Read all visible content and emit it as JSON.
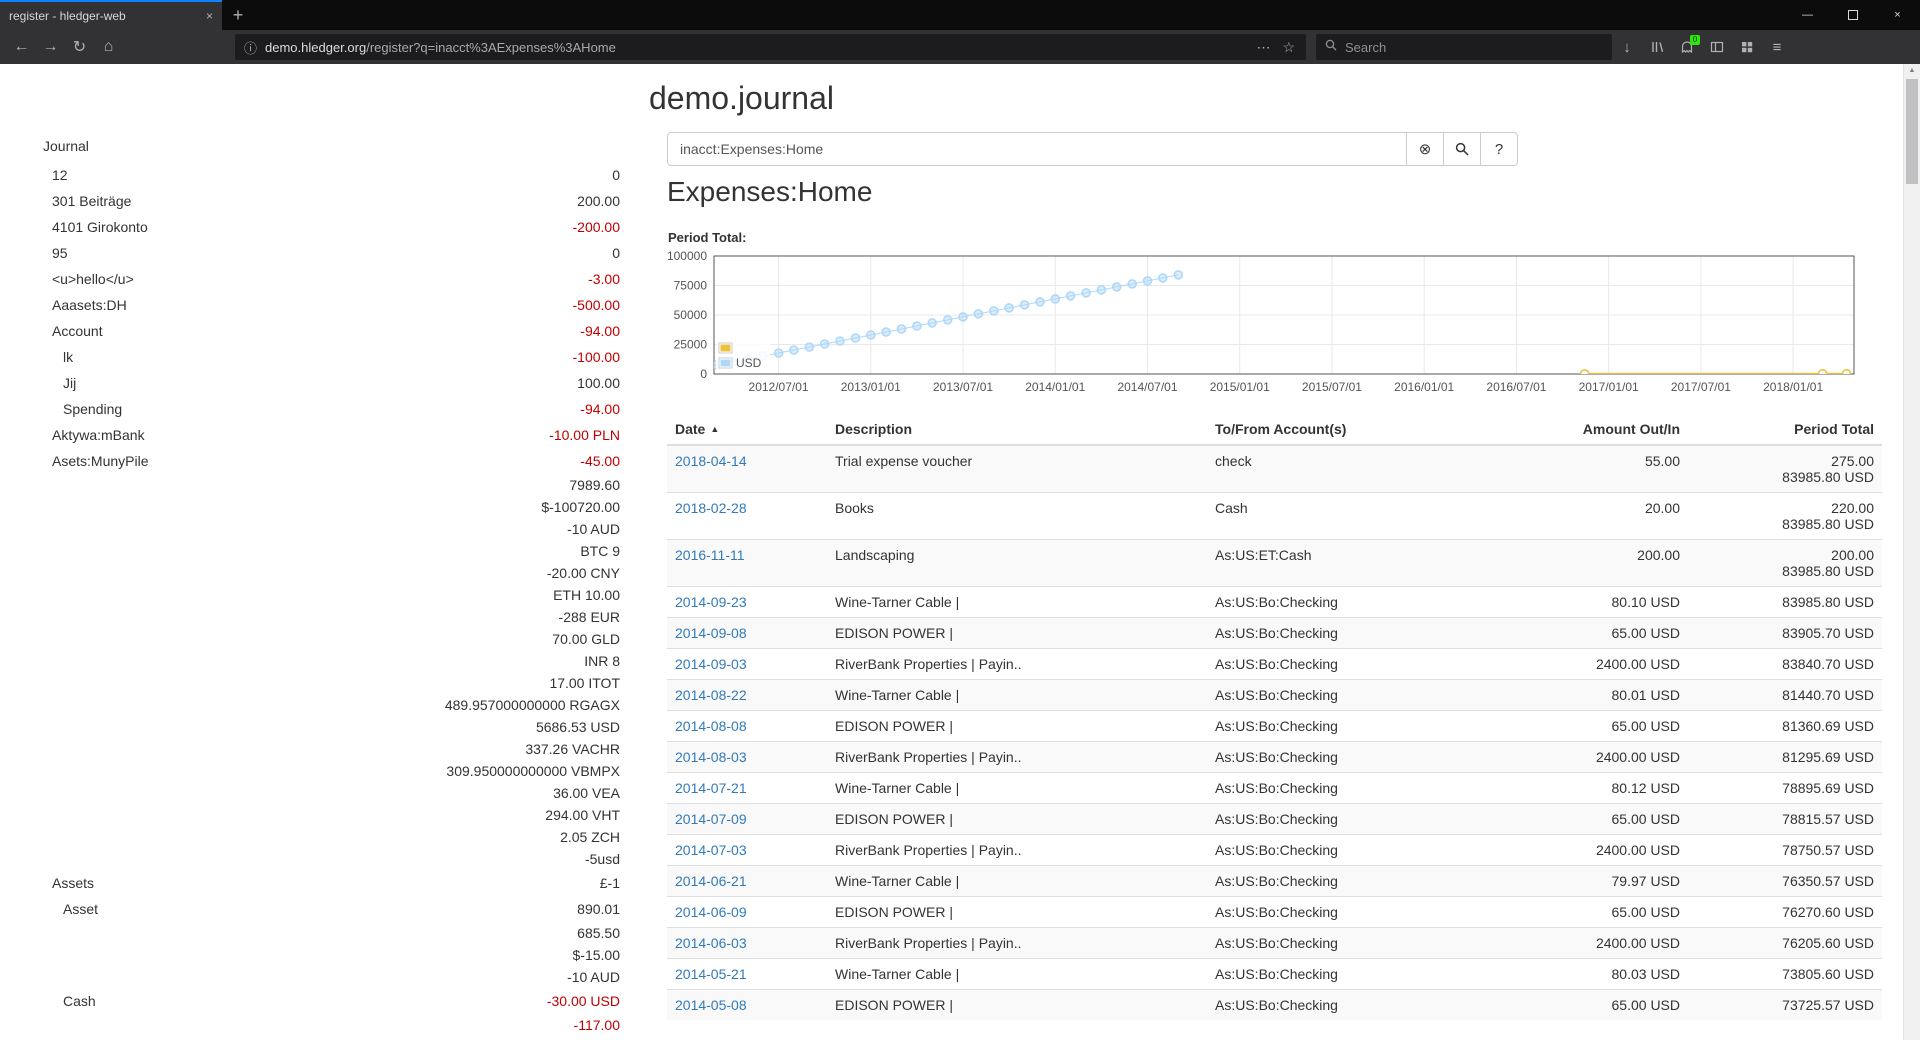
{
  "browser": {
    "tab_title": "register - hledger-web",
    "url_host": "demo.hledger.org",
    "url_path": "/register?q=inacct%3AExpenses%3AHome",
    "search_placeholder": "Search",
    "badge_count": "0"
  },
  "icons": {
    "back": "←",
    "forward": "→",
    "reload": "↻",
    "home": "⌂",
    "info": "ⓘ",
    "ellipsis": "⋯",
    "star": "☆",
    "menu": "≡",
    "new_tab": "+",
    "tab_close": "×",
    "win_min": "—",
    "win_close": "×",
    "download": "↓",
    "clear": "⊗",
    "help": "?",
    "caret_up": "▲",
    "scroll_up": "▲"
  },
  "page": {
    "title": "demo.journal",
    "heading": "Expenses:Home",
    "period_total_label": "Period Total:",
    "search_query": "inacct:Expenses:Home"
  },
  "sidebar": {
    "journal_label": "Journal",
    "rows": [
      {
        "name": "12",
        "indent": 1,
        "amount": "0",
        "neg": false
      },
      {
        "name": "301 Beiträge",
        "indent": 1,
        "amount": "200.00",
        "neg": false
      },
      {
        "name": "4101 Girokonto",
        "indent": 1,
        "amount": "-200.00",
        "neg": true
      },
      {
        "name": "95",
        "indent": 1,
        "amount": "0",
        "neg": false
      },
      {
        "name": "<u>hello</u>",
        "indent": 1,
        "amount": "-3.00",
        "neg": true
      },
      {
        "name": "Aaasets:DH",
        "indent": 1,
        "amount": "-500.00",
        "neg": true
      },
      {
        "name": "Account",
        "indent": 1,
        "amount": "-94.00",
        "neg": true
      },
      {
        "name": "lk",
        "indent": 2,
        "amount": "-100.00",
        "neg": true
      },
      {
        "name": "Jij",
        "indent": 2,
        "amount": "100.00",
        "neg": false
      },
      {
        "name": "Spending",
        "indent": 2,
        "amount": "-94.00",
        "neg": true
      },
      {
        "name": "Aktywa:mBank",
        "indent": 1,
        "amount": "-10.00 PLN",
        "neg": true
      },
      {
        "name": "Asets:MunyPile",
        "indent": 1,
        "amount": "-45.00",
        "neg": true
      },
      {
        "name": "",
        "amount": "7989.60",
        "neg": false
      },
      {
        "name": "",
        "amount": "$-100720.00",
        "neg": false
      },
      {
        "name": "",
        "amount": "-10 AUD",
        "neg": false
      },
      {
        "name": "",
        "amount": "BTC 9",
        "neg": false
      },
      {
        "name": "",
        "amount": "-20.00 CNY",
        "neg": false
      },
      {
        "name": "",
        "amount": "ETH 10.00",
        "neg": false
      },
      {
        "name": "",
        "amount": "-288 EUR",
        "neg": false
      },
      {
        "name": "",
        "amount": "70.00 GLD",
        "neg": false
      },
      {
        "name": "",
        "amount": "INR 8",
        "neg": false
      },
      {
        "name": "",
        "amount": "17.00 ITOT",
        "neg": false
      },
      {
        "name": "",
        "amount": "489.957000000000 RGAGX",
        "neg": false
      },
      {
        "name": "",
        "amount": "5686.53 USD",
        "neg": false
      },
      {
        "name": "",
        "amount": "337.26 VACHR",
        "neg": false
      },
      {
        "name": "",
        "amount": "309.950000000000 VBMPX",
        "neg": false
      },
      {
        "name": "",
        "amount": "36.00 VEA",
        "neg": false
      },
      {
        "name": "",
        "amount": "294.00 VHT",
        "neg": false
      },
      {
        "name": "",
        "amount": "2.05 ZCH",
        "neg": false
      },
      {
        "name": "",
        "amount": "-5usd",
        "neg": false
      },
      {
        "name": "Assets",
        "indent": 1,
        "amount": "£-1",
        "neg": false
      },
      {
        "name": "Asset",
        "indent": 2,
        "amount": "890.01",
        "neg": false
      },
      {
        "name": "",
        "amount": "685.50",
        "neg": false
      },
      {
        "name": "",
        "amount": "$-15.00",
        "neg": false
      },
      {
        "name": "",
        "amount": "-10 AUD",
        "neg": false
      },
      {
        "name": "Cash",
        "indent": 2,
        "amount": "-30.00 USD",
        "neg": true
      },
      {
        "name": "",
        "amount": "-117.00",
        "neg": true
      }
    ]
  },
  "register": {
    "columns": [
      "Date",
      "Description",
      "To/From Account(s)",
      "Amount Out/In",
      "Period Total"
    ],
    "rows": [
      {
        "date": "2018-04-14",
        "desc": "Trial expense voucher",
        "acct": "check",
        "amount": "55.00",
        "totals": [
          "275.00",
          "83985.80 USD"
        ]
      },
      {
        "date": "2018-02-28",
        "desc": "Books",
        "acct": "Cash",
        "amount": "20.00",
        "totals": [
          "220.00",
          "83985.80 USD"
        ]
      },
      {
        "date": "2016-11-11",
        "desc": "Landscaping",
        "acct": "As:US:ET:Cash",
        "amount": "200.00",
        "totals": [
          "200.00",
          "83985.80 USD"
        ]
      },
      {
        "date": "2014-09-23",
        "desc": "Wine-Tarner Cable |",
        "acct": "As:US:Bo:Checking",
        "amount": "80.10 USD",
        "totals": [
          "83985.80 USD"
        ]
      },
      {
        "date": "2014-09-08",
        "desc": "EDISON POWER |",
        "acct": "As:US:Bo:Checking",
        "amount": "65.00 USD",
        "totals": [
          "83905.70 USD"
        ]
      },
      {
        "date": "2014-09-03",
        "desc": "RiverBank Properties | Payin..",
        "acct": "As:US:Bo:Checking",
        "amount": "2400.00 USD",
        "totals": [
          "83840.70 USD"
        ]
      },
      {
        "date": "2014-08-22",
        "desc": "Wine-Tarner Cable |",
        "acct": "As:US:Bo:Checking",
        "amount": "80.01 USD",
        "totals": [
          "81440.70 USD"
        ]
      },
      {
        "date": "2014-08-08",
        "desc": "EDISON POWER |",
        "acct": "As:US:Bo:Checking",
        "amount": "65.00 USD",
        "totals": [
          "81360.69 USD"
        ]
      },
      {
        "date": "2014-08-03",
        "desc": "RiverBank Properties | Payin..",
        "acct": "As:US:Bo:Checking",
        "amount": "2400.00 USD",
        "totals": [
          "81295.69 USD"
        ]
      },
      {
        "date": "2014-07-21",
        "desc": "Wine-Tarner Cable |",
        "acct": "As:US:Bo:Checking",
        "amount": "80.12 USD",
        "totals": [
          "78895.69 USD"
        ]
      },
      {
        "date": "2014-07-09",
        "desc": "EDISON POWER |",
        "acct": "As:US:Bo:Checking",
        "amount": "65.00 USD",
        "totals": [
          "78815.57 USD"
        ]
      },
      {
        "date": "2014-07-03",
        "desc": "RiverBank Properties | Payin..",
        "acct": "As:US:Bo:Checking",
        "amount": "2400.00 USD",
        "totals": [
          "78750.57 USD"
        ]
      },
      {
        "date": "2014-06-21",
        "desc": "Wine-Tarner Cable |",
        "acct": "As:US:Bo:Checking",
        "amount": "79.97 USD",
        "totals": [
          "76350.57 USD"
        ]
      },
      {
        "date": "2014-06-09",
        "desc": "EDISON POWER |",
        "acct": "As:US:Bo:Checking",
        "amount": "65.00 USD",
        "totals": [
          "76270.60 USD"
        ]
      },
      {
        "date": "2014-06-03",
        "desc": "RiverBank Properties | Payin..",
        "acct": "As:US:Bo:Checking",
        "amount": "2400.00 USD",
        "totals": [
          "76205.60 USD"
        ]
      },
      {
        "date": "2014-05-21",
        "desc": "Wine-Tarner Cable |",
        "acct": "As:US:Bo:Checking",
        "amount": "80.03 USD",
        "totals": [
          "73805.60 USD"
        ]
      },
      {
        "date": "2014-05-08",
        "desc": "EDISON POWER |",
        "acct": "As:US:Bo:Checking",
        "amount": "65.00 USD",
        "totals": [
          "73725.57 USD"
        ]
      }
    ]
  },
  "chart_data": {
    "type": "line",
    "title": "Period Total:",
    "x_range": [
      2012.15,
      2018.33
    ],
    "y_range": [
      0,
      100000
    ],
    "x_tick_values": [
      2012.5,
      2013.0,
      2013.5,
      2014.0,
      2014.5,
      2015.0,
      2015.5,
      2016.0,
      2016.5,
      2017.0,
      2017.5,
      2018.0
    ],
    "x_ticks": [
      "2012/07/01",
      "2013/01/01",
      "2013/07/01",
      "2014/01/01",
      "2014/07/01",
      "2015/01/01",
      "2015/07/01",
      "2016/01/01",
      "2016/07/01",
      "2017/01/01",
      "2017/07/01",
      "2018/01/01"
    ],
    "y_ticks": [
      0,
      25000,
      50000,
      75000,
      100000
    ],
    "grid": true,
    "legend_position": "bottom-left",
    "series": [
      {
        "name": "",
        "color": "#edc240",
        "fill": "#ffffff",
        "line_width": 2,
        "x": [
          2016.87,
          2018.16,
          2018.29
        ],
        "y": [
          200,
          220,
          275
        ]
      },
      {
        "name": "USD",
        "color": "#afd8f8",
        "fill": "rgba(175,216,248,0.45)",
        "line_width": 1,
        "x": [
          2012.0,
          2012.083,
          2012.167,
          2012.25,
          2012.333,
          2012.417,
          2012.5,
          2012.583,
          2012.667,
          2012.75,
          2012.833,
          2012.917,
          2013.0,
          2013.083,
          2013.167,
          2013.25,
          2013.333,
          2013.417,
          2013.5,
          2013.583,
          2013.667,
          2013.75,
          2013.833,
          2013.917,
          2014.0,
          2014.083,
          2014.167,
          2014.25,
          2014.333,
          2014.417,
          2014.5,
          2014.583,
          2014.667
        ],
        "y": [
          2545,
          5090,
          7635,
          10180,
          12725,
          15270,
          17815,
          20360,
          22905,
          25450,
          27995,
          30540,
          33085,
          35630,
          38175,
          40720,
          43265,
          45810,
          48355,
          50900,
          53445,
          55990,
          58535,
          61080,
          63625,
          66170,
          68715,
          71260,
          73805,
          76350,
          78895,
          81440,
          83985
        ]
      }
    ]
  }
}
